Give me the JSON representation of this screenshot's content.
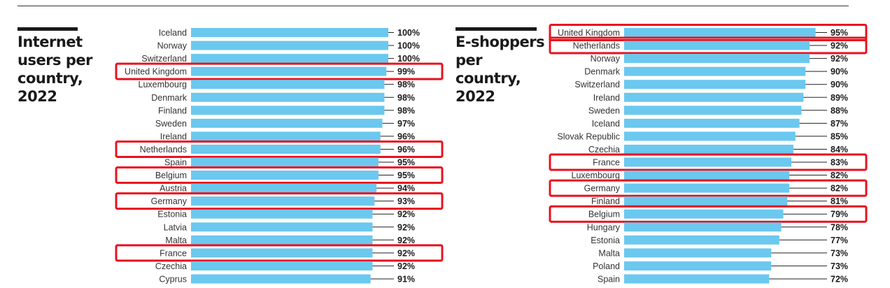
{
  "colors": {
    "bar": "#6bc8ef",
    "highlight": "#e8121f",
    "text": "#333333",
    "title": "#1a1a1a"
  },
  "chart_data": [
    {
      "type": "bar",
      "orientation": "horizontal",
      "title": "Internet users per country, 2022",
      "value_unit": "%",
      "xlim": [
        0,
        100
      ],
      "grid": false,
      "legend": "none",
      "categories": [
        "Iceland",
        "Norway",
        "Switzerland",
        "United Kingdom",
        "Luxembourg",
        "Denmark",
        "Finland",
        "Sweden",
        "Ireland",
        "Netherlands",
        "Spain",
        "Belgium",
        "Austria",
        "Germany",
        "Estonia",
        "Latvia",
        "Malta",
        "France",
        "Czechia",
        "Cyprus"
      ],
      "values": [
        100,
        100,
        100,
        99,
        98,
        98,
        98,
        97,
        96,
        96,
        95,
        95,
        94,
        93,
        92,
        92,
        92,
        92,
        92,
        91
      ],
      "value_labels": [
        "100%",
        "100%",
        "100%",
        "99%",
        "98%",
        "98%",
        "98%",
        "97%",
        "96%",
        "96%",
        "95%",
        "95%",
        "94%",
        "93%",
        "92%",
        "92%",
        "92%",
        "92%",
        "92%",
        "91%"
      ],
      "highlighted": [
        "United Kingdom",
        "Netherlands",
        "Belgium",
        "Germany",
        "France"
      ]
    },
    {
      "type": "bar",
      "orientation": "horizontal",
      "title": "E-shoppers per country, 2022",
      "value_unit": "%",
      "xlim": [
        0,
        100
      ],
      "grid": false,
      "legend": "none",
      "categories": [
        "United Kingdom",
        "Netherlands",
        "Norway",
        "Denmark",
        "Switzerland",
        "Ireland",
        "Sweden",
        "Iceland",
        "Slovak Republic",
        "Czechia",
        "France",
        "Luxembourg",
        "Germany",
        "Finland",
        "Belgium",
        "Hungary",
        "Estonia",
        "Malta",
        "Poland",
        "Spain"
      ],
      "values": [
        95,
        92,
        92,
        90,
        90,
        89,
        88,
        87,
        85,
        84,
        83,
        82,
        82,
        81,
        79,
        78,
        77,
        73,
        73,
        72
      ],
      "value_labels": [
        "95%",
        "92%",
        "92%",
        "90%",
        "90%",
        "89%",
        "88%",
        "87%",
        "85%",
        "84%",
        "83%",
        "82%",
        "82%",
        "81%",
        "79%",
        "78%",
        "77%",
        "73%",
        "73%",
        "72%"
      ],
      "highlighted": [
        "United Kingdom",
        "Netherlands",
        "France",
        "Germany",
        "Belgium"
      ]
    }
  ]
}
